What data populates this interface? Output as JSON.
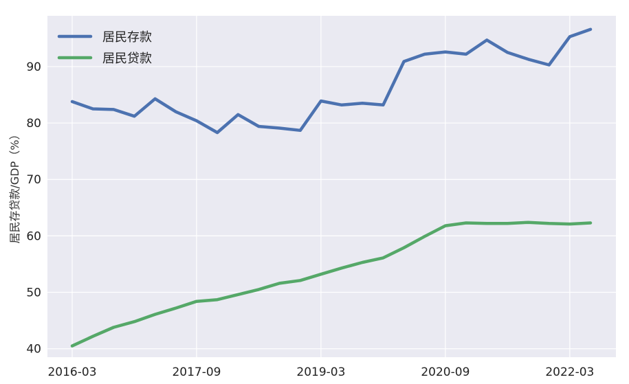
{
  "chart_data": {
    "type": "line",
    "ylabel": "居民存贷款/GDP（%）",
    "xlabel": "",
    "x": [
      "2016-03",
      "2016-06",
      "2016-09",
      "2016-12",
      "2017-03",
      "2017-06",
      "2017-09",
      "2017-12",
      "2018-03",
      "2018-06",
      "2018-09",
      "2018-12",
      "2019-03",
      "2019-06",
      "2019-09",
      "2019-12",
      "2020-03",
      "2020-06",
      "2020-09",
      "2020-12",
      "2021-03",
      "2021-06",
      "2021-09",
      "2021-12",
      "2022-03",
      "2022-06"
    ],
    "x_tick_labels": [
      "2016-03",
      "2017-09",
      "2019-03",
      "2020-09",
      "2022-03"
    ],
    "y_ticks": [
      40,
      50,
      60,
      70,
      80,
      90
    ],
    "ylim": [
      38.5,
      99
    ],
    "legend_position": "top-left",
    "grid": true,
    "series": [
      {
        "name": "居民存款",
        "color": "#4c72b0",
        "values": [
          83.8,
          82.5,
          82.4,
          81.2,
          84.3,
          82.0,
          80.4,
          78.3,
          81.5,
          79.4,
          79.1,
          78.7,
          83.9,
          83.2,
          83.5,
          83.2,
          90.9,
          92.2,
          92.6,
          92.2,
          94.7,
          92.5,
          91.3,
          90.3,
          95.3,
          96.6
        ]
      },
      {
        "name": "居民贷款",
        "color": "#55a868",
        "values": [
          40.5,
          42.2,
          43.8,
          44.8,
          46.1,
          47.2,
          48.4,
          48.7,
          49.6,
          50.5,
          51.6,
          52.1,
          53.2,
          54.3,
          55.3,
          56.1,
          57.9,
          59.9,
          61.8,
          62.3,
          62.2,
          62.2,
          62.4,
          62.2,
          62.1,
          62.3
        ]
      }
    ]
  }
}
